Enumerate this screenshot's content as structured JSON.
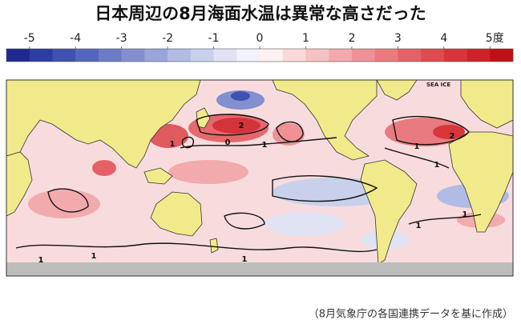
{
  "title": "日本周辺の8月海面水温は異常な高さだった",
  "colorbar": {
    "ticks": [
      -5,
      -4,
      -3,
      -2,
      -1,
      0,
      1,
      2,
      3,
      4,
      {
        "value": 5,
        "label": "5度"
      }
    ],
    "range": [
      -5.5,
      5.5
    ],
    "colors": [
      "#1e2a8f",
      "#2d3da0",
      "#3f52b0",
      "#5567bc",
      "#6b7bc6",
      "#8290d0",
      "#9aa5da",
      "#b2bbe4",
      "#c9d0ec",
      "#dfe3f4",
      "#f2f3fa",
      "#fdf1f1",
      "#fad9da",
      "#f6c2c4",
      "#f2aaad",
      "#ee9296",
      "#ea7a7f",
      "#e56167",
      "#e04a50",
      "#d9353b",
      "#cf2127",
      "#c10f15"
    ]
  },
  "map": {
    "sea_ice_label": "SEA ICE",
    "contour_labels": [
      "2",
      "0",
      "1",
      "1",
      "2",
      "1",
      "1",
      "1",
      "1",
      "1",
      "1",
      "1"
    ]
  },
  "source": "（8月気象庁の各国連携データを基に作成）"
}
